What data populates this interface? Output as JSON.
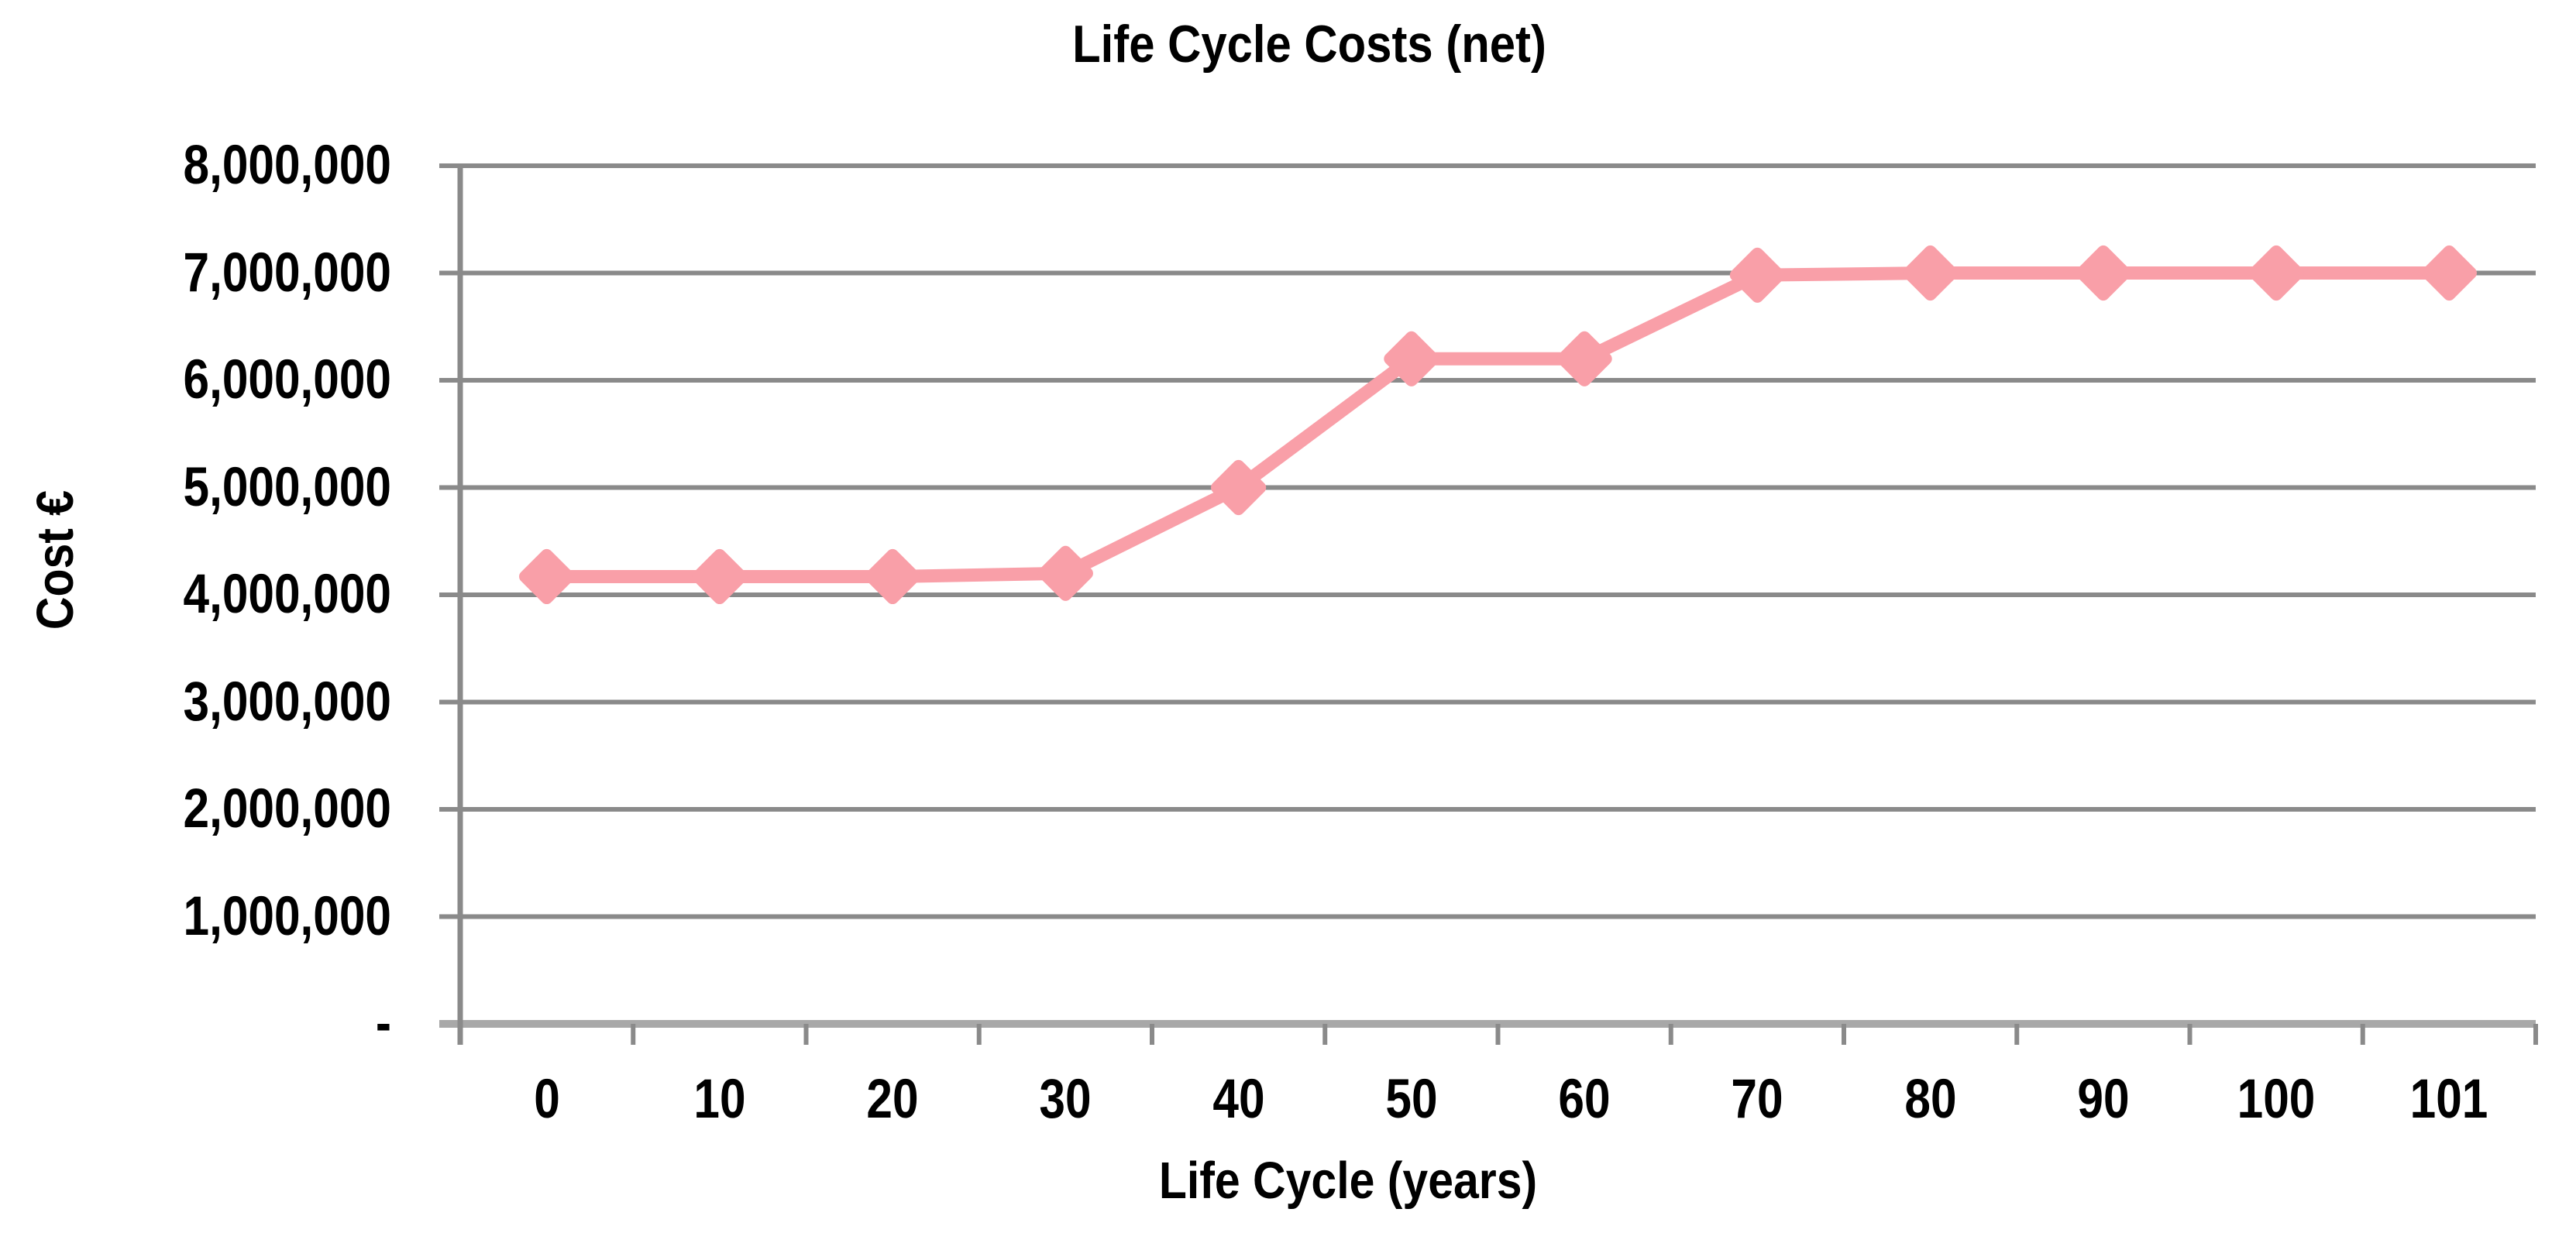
{
  "chart_data": {
    "type": "line",
    "title": "Life Cycle Costs (net)",
    "xlabel": "Life Cycle (years)",
    "ylabel": "Cost €",
    "categories": [
      "0",
      "10",
      "20",
      "30",
      "40",
      "50",
      "60",
      "70",
      "80",
      "90",
      "100",
      "101"
    ],
    "series": [
      {
        "name": "Life Cycle Costs (net)",
        "values": [
          4170000,
          4170000,
          4170000,
          4200000,
          5000000,
          6200000,
          6200000,
          6980000,
          7000000,
          7000000,
          7000000,
          7000000
        ]
      }
    ],
    "ylim": [
      0,
      8000000
    ],
    "ytick_step": 1000000,
    "ytick_labels": [
      "8,000,000",
      "7,000,000",
      "6,000,000",
      "5,000,000",
      "4,000,000",
      "3,000,000",
      "2,000,000",
      "1,000,000",
      "-"
    ],
    "grid": "horizontal-gridlines-on",
    "legend": "none",
    "marker": "diamond",
    "line_color": "#f99fa8",
    "grid_color": "#8a8a8a",
    "axis_color": "#a8a8a8",
    "text_color": "#000000",
    "background_color": "#ffffff"
  }
}
